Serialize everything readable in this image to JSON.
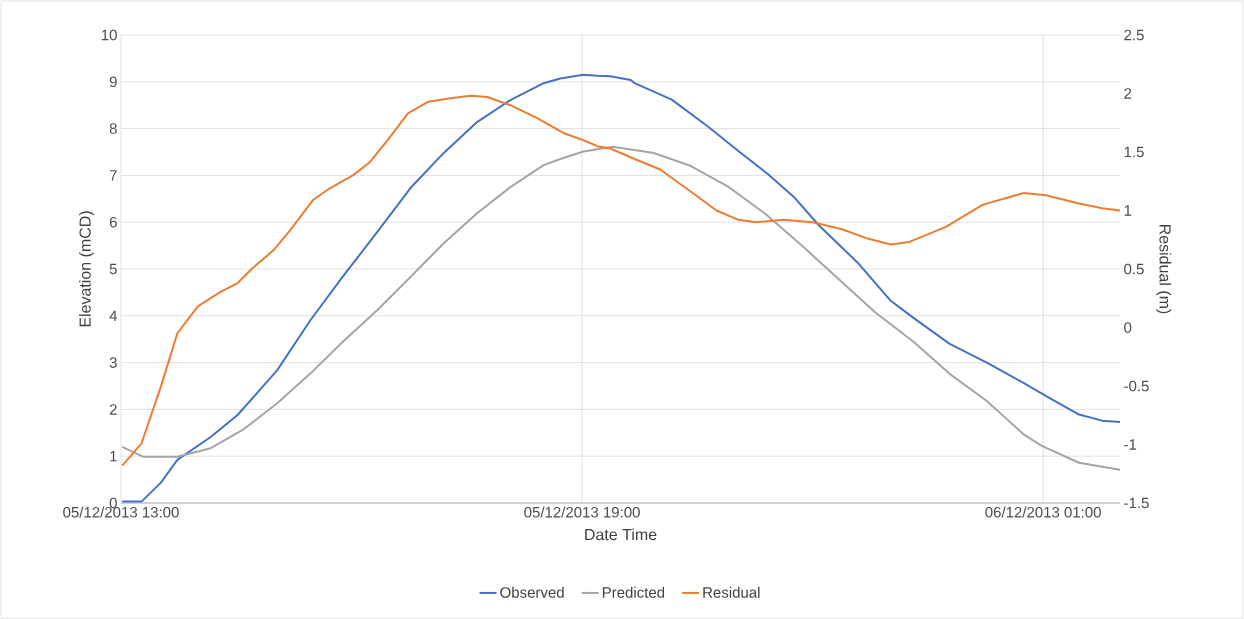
{
  "chart_data": {
    "type": "line",
    "xlabel": "Date Time",
    "ylabel": "Elevation (mCD)",
    "y2label": "Residual (m)",
    "xlim": [
      "2013-12-05T13:00",
      "2013-12-06T02:00"
    ],
    "ylim": [
      0,
      10
    ],
    "y2lim": [
      -1.5,
      2.5
    ],
    "xticks": [
      {
        "value": "2013-12-05T13:00",
        "label": "05/12/2013 13:00"
      },
      {
        "value": "2013-12-05T19:00",
        "label": "05/12/2013 19:00"
      },
      {
        "value": "2013-12-06T01:00",
        "label": "06/12/2013 01:00"
      }
    ],
    "yticks": [
      0,
      1,
      2,
      3,
      4,
      5,
      6,
      7,
      8,
      9,
      10
    ],
    "y2ticks": [
      -1.5,
      -1,
      -0.5,
      0,
      0.5,
      1,
      1.5,
      2,
      2.5
    ],
    "grid": true,
    "legend": "bottom",
    "line_style": "solid",
    "series": [
      {
        "name": "Observed",
        "color": "#4472c4",
        "x": [
          "2013-12-05T13:01",
          "2013-12-05T13:16",
          "2013-12-05T13:31",
          "2013-12-05T13:44",
          "2013-12-05T14:10",
          "2013-12-05T14:31",
          "2013-12-05T15:02",
          "2013-12-05T15:28",
          "2013-12-05T15:53",
          "2013-12-05T16:20",
          "2013-12-05T16:46",
          "2013-12-05T17:12",
          "2013-12-05T17:38",
          "2013-12-05T18:04",
          "2013-12-05T18:30",
          "2013-12-05T18:43",
          "2013-12-05T19:01",
          "2013-12-05T19:12",
          "2013-12-05T19:22",
          "2013-12-05T19:38",
          "2013-12-05T19:41",
          "2013-12-05T20:10",
          "2013-12-05T20:39",
          "2013-12-05T21:02",
          "2013-12-05T21:25",
          "2013-12-05T21:46",
          "2013-12-05T22:05",
          "2013-12-05T22:35",
          "2013-12-05T23:01",
          "2013-12-05T23:19",
          "2013-12-05T23:47",
          "2013-12-06T00:16",
          "2013-12-06T00:45",
          "2013-12-06T01:02",
          "2013-12-06T01:28",
          "2013-12-06T01:46",
          "2013-12-06T02:00"
        ],
        "values": [
          0.03,
          0.03,
          0.43,
          0.92,
          1.41,
          1.88,
          2.84,
          3.91,
          4.83,
          5.79,
          6.73,
          7.48,
          8.14,
          8.61,
          8.97,
          9.07,
          9.15,
          9.13,
          9.12,
          9.04,
          8.97,
          8.62,
          8.03,
          7.52,
          7.03,
          6.52,
          5.93,
          5.14,
          4.32,
          3.95,
          3.4,
          3.0,
          2.56,
          2.29,
          1.89,
          1.76,
          1.73
        ]
      },
      {
        "name": "Predicted",
        "color": "#a5a5a5",
        "x": [
          "2013-12-05T13:01",
          "2013-12-05T13:17",
          "2013-12-05T13:44",
          "2013-12-05T14:10",
          "2013-12-05T14:35",
          "2013-12-05T15:02",
          "2013-12-05T15:28",
          "2013-12-05T15:53",
          "2013-12-05T16:20",
          "2013-12-05T16:46",
          "2013-12-05T17:12",
          "2013-12-05T17:38",
          "2013-12-05T18:04",
          "2013-12-05T18:30",
          "2013-12-05T18:43",
          "2013-12-05T19:01",
          "2013-12-05T19:24",
          "2013-12-05T19:56",
          "2013-12-05T20:25",
          "2013-12-05T20:54",
          "2013-12-05T21:23",
          "2013-12-05T21:52",
          "2013-12-05T22:20",
          "2013-12-05T22:49",
          "2013-12-05T23:19",
          "2013-12-05T23:47",
          "2013-12-06T00:16",
          "2013-12-06T00:45",
          "2013-12-06T00:59",
          "2013-12-06T01:28",
          "2013-12-06T02:00"
        ],
        "values": [
          1.2,
          0.99,
          0.99,
          1.17,
          1.56,
          2.13,
          2.77,
          3.44,
          4.12,
          4.83,
          5.55,
          6.19,
          6.75,
          7.22,
          7.35,
          7.51,
          7.61,
          7.48,
          7.2,
          6.76,
          6.18,
          5.49,
          4.79,
          4.07,
          3.44,
          2.76,
          2.18,
          1.46,
          1.22,
          0.86,
          0.71
        ]
      },
      {
        "name": "Residual",
        "color": "#ed7d31",
        "axis": "y2",
        "x": [
          "2013-12-05T13:01",
          "2013-12-05T13:16",
          "2013-12-05T13:31",
          "2013-12-05T13:44",
          "2013-12-05T14:00",
          "2013-12-05T14:17",
          "2013-12-05T14:31",
          "2013-12-05T14:43",
          "2013-12-05T14:59",
          "2013-12-05T15:12",
          "2013-12-05T15:30",
          "2013-12-05T15:43",
          "2013-12-05T16:01",
          "2013-12-05T16:14",
          "2013-12-05T16:28",
          "2013-12-05T16:44",
          "2013-12-05T17:00",
          "2013-12-05T17:17",
          "2013-12-05T17:33",
          "2013-12-05T17:46",
          "2013-12-05T18:04",
          "2013-12-05T18:25",
          "2013-12-05T18:46",
          "2013-12-05T19:01",
          "2013-12-05T19:12",
          "2013-12-05T19:22",
          "2013-12-05T19:41",
          "2013-12-05T20:01",
          "2013-12-05T20:25",
          "2013-12-05T20:45",
          "2013-12-05T21:02",
          "2013-12-05T21:16",
          "2013-12-05T21:37",
          "2013-12-05T22:00",
          "2013-12-05T22:23",
          "2013-12-05T22:43",
          "2013-12-05T23:01",
          "2013-12-05T23:15",
          "2013-12-05T23:44",
          "2013-12-06T00:13",
          "2013-12-06T00:45",
          "2013-12-06T01:02",
          "2013-12-06T01:28",
          "2013-12-06T01:46",
          "2013-12-06T02:00"
        ],
        "values": [
          -1.18,
          -0.99,
          -0.51,
          -0.05,
          0.18,
          0.3,
          0.38,
          0.51,
          0.66,
          0.83,
          1.09,
          1.19,
          1.3,
          1.41,
          1.6,
          1.83,
          1.93,
          1.96,
          1.98,
          1.97,
          1.9,
          1.79,
          1.66,
          1.6,
          1.55,
          1.53,
          1.44,
          1.35,
          1.16,
          1.0,
          0.92,
          0.9,
          0.92,
          0.9,
          0.84,
          0.76,
          0.71,
          0.73,
          0.86,
          1.05,
          1.15,
          1.13,
          1.06,
          1.02,
          1.0
        ]
      }
    ]
  }
}
